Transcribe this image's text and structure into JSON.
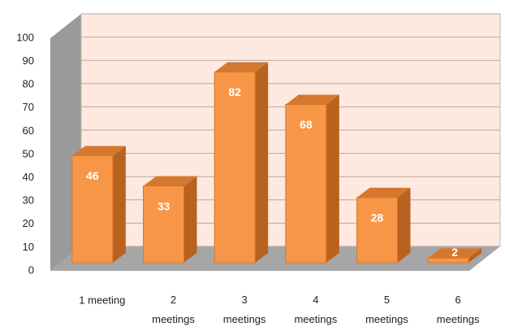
{
  "chart_data": {
    "type": "bar3d",
    "categories": [
      "1 meeting",
      "2 meetings",
      "3 meetings",
      "4 meetings",
      "5 meetings",
      "6 meetings"
    ],
    "values": [
      46,
      33,
      82,
      68,
      28,
      2
    ],
    "color": "#f79646",
    "ylim": [
      0,
      100
    ],
    "yticks": [
      0,
      10,
      20,
      30,
      40,
      50,
      60,
      70,
      80,
      90,
      100
    ],
    "grid": true
  }
}
